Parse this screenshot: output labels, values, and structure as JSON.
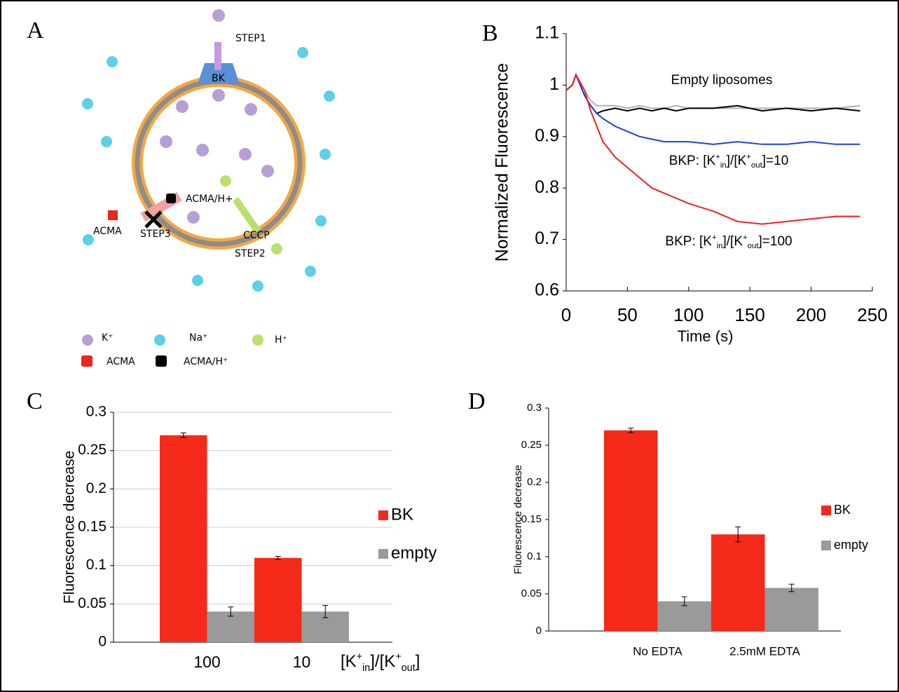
{
  "diagram": {
    "panel": "A",
    "labels": [
      "STEP1",
      "BK",
      "ACMA/H+",
      "ACMA",
      "STEP3",
      "CCCP",
      "STEP2"
    ],
    "legend": [
      "K⁺",
      "Na⁺",
      "H⁺",
      "ACMA",
      "ACMA/H⁺"
    ]
  },
  "chart_data": [
    {
      "type": "line",
      "panel": "B",
      "xlabel": "Time (s)",
      "ylabel": "Normalized Fluorescence",
      "x": [
        0,
        5,
        8,
        15,
        20,
        25,
        30,
        40,
        50,
        60,
        70,
        80,
        90,
        100,
        120,
        140,
        160,
        180,
        200,
        220,
        240
      ],
      "series": [
        {
          "color": "#b0b0b0",
          "values": [
            0.99,
            1.0,
            1.02,
            0.99,
            0.97,
            0.96,
            0.96,
            0.96,
            0.955,
            0.96,
            0.955,
            0.955,
            0.96,
            0.955,
            0.955,
            0.955,
            0.955,
            0.955,
            0.955,
            0.955,
            0.96
          ]
        },
        {
          "color": "#000000",
          "values": [
            0.99,
            1.0,
            1.02,
            0.98,
            0.96,
            0.945,
            0.95,
            0.955,
            0.95,
            0.955,
            0.95,
            0.955,
            0.95,
            0.955,
            0.955,
            0.96,
            0.95,
            0.955,
            0.95,
            0.955,
            0.95
          ]
        },
        {
          "color": "#1f3fe0",
          "values": [
            0.99,
            1.0,
            1.02,
            0.98,
            0.96,
            0.945,
            0.935,
            0.92,
            0.91,
            0.9,
            0.895,
            0.89,
            0.89,
            0.89,
            0.885,
            0.89,
            0.885,
            0.885,
            0.89,
            0.885,
            0.885
          ]
        },
        {
          "color": "#f02020",
          "values": [
            0.99,
            1.0,
            1.02,
            0.99,
            0.95,
            0.92,
            0.89,
            0.86,
            0.84,
            0.82,
            0.8,
            0.79,
            0.78,
            0.77,
            0.755,
            0.735,
            0.73,
            0.735,
            0.74,
            0.745,
            0.745
          ]
        }
      ],
      "annotations": [
        {
          "parts": [
            {
              "text": "Empty liposomes"
            }
          ]
        },
        {
          "parts": [
            {
              "text": "BKP: [K"
            },
            {
              "text": "+",
              "style": "sup"
            },
            {
              "text": "in",
              "style": "sub"
            },
            {
              "text": "]/[K"
            },
            {
              "text": "+",
              "style": "sup"
            },
            {
              "text": "out",
              "style": "sub"
            },
            {
              "text": "]=10"
            }
          ]
        },
        {
          "parts": [
            {
              "text": "BKP: [K"
            },
            {
              "text": "+",
              "style": "sup"
            },
            {
              "text": "in",
              "style": "sub"
            },
            {
              "text": "]/[K"
            },
            {
              "text": "+",
              "style": "sup"
            },
            {
              "text": "out",
              "style": "sub"
            },
            {
              "text": "]=100"
            }
          ]
        }
      ],
      "xlim": [
        0,
        250
      ],
      "xticks": [
        0,
        50,
        100,
        150,
        200,
        250
      ],
      "ylim": [
        0.6,
        1.1
      ],
      "yticks": [
        0.6,
        0.7,
        0.8,
        0.9,
        1,
        1.1
      ],
      "grid": false
    },
    {
      "type": "bar",
      "panel": "C",
      "ylabel": "Fluorescence decrease",
      "xlabel_parts": [
        {
          "text": "[K"
        },
        {
          "text": "+",
          "style": "sup"
        },
        {
          "text": "in",
          "style": "sub"
        },
        {
          "text": "]/[K"
        },
        {
          "text": "+",
          "style": "sup"
        },
        {
          "text": "out",
          "style": "sub"
        },
        {
          "text": "]"
        }
      ],
      "categories": [
        "100",
        "10"
      ],
      "series": [
        {
          "name": "BK",
          "color": "#f52a1a",
          "values": [
            0.27,
            0.11
          ],
          "errors": [
            0.003,
            0.002
          ]
        },
        {
          "name": "empty",
          "color": "#9a9a9a",
          "values": [
            0.04,
            0.04
          ],
          "errors": [
            0.006,
            0.008
          ]
        }
      ],
      "ylim": [
        0,
        0.3
      ],
      "yticks": [
        0,
        0.05,
        0.1,
        0.15,
        0.2,
        0.25,
        0.3
      ],
      "grid": true,
      "legend": "right"
    },
    {
      "type": "bar",
      "panel": "D",
      "ylabel": "Fluorescence decrease",
      "categories": [
        "No EDTA",
        "2.5mM EDTA"
      ],
      "series": [
        {
          "name": "BK",
          "color": "#f52a1a",
          "values": [
            0.27,
            0.13
          ],
          "errors": [
            0.003,
            0.01
          ]
        },
        {
          "name": "empty",
          "color": "#9a9a9a",
          "values": [
            0.04,
            0.058
          ],
          "errors": [
            0.006,
            0.005
          ]
        }
      ],
      "ylim": [
        0,
        0.3
      ],
      "yticks": [
        0,
        0.05,
        0.1,
        0.15,
        0.2,
        0.25,
        0.3
      ],
      "grid": false,
      "legend": "right"
    }
  ]
}
